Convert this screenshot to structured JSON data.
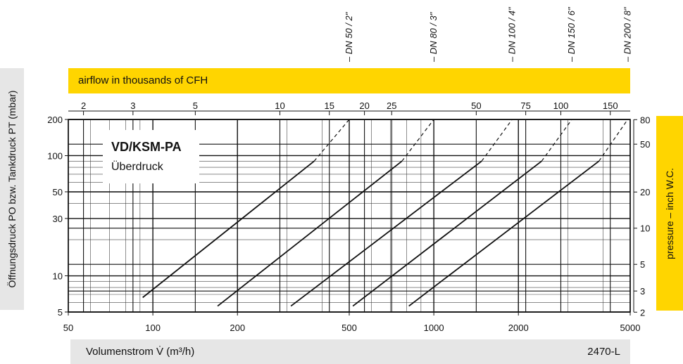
{
  "top_band": {
    "label": "airflow in thousands of CFH"
  },
  "bottom_band": {
    "label": "Volumenstrom V̇ (m³/h)",
    "code": "2470-L"
  },
  "left_axis_label": "Öffnungsdruck PO bzw. Tankdruck PT (mbar)",
  "right_axis_label": "pressure – inch W.C.",
  "legend": {
    "title": "VD/KSM-PA",
    "subtitle": "Überdruck"
  },
  "colors": {
    "accent_yellow": "#ffd500",
    "band_gray": "#e6e6e6",
    "line": "#111111"
  },
  "chart_data": {
    "type": "line",
    "x_scale": "log",
    "y_scale": "log",
    "xlim": [
      50,
      5000
    ],
    "ylim": [
      5,
      200
    ],
    "x_ticks": [
      50,
      100,
      200,
      500,
      1000,
      2000,
      5000
    ],
    "y_ticks": [
      5,
      10,
      30,
      50,
      100,
      200
    ],
    "top_ticks": [
      2,
      3,
      5,
      10,
      15,
      20,
      25,
      50,
      75,
      100,
      150
    ],
    "right_ticks": [
      2,
      3,
      5,
      10,
      20,
      50,
      80
    ],
    "grid": true,
    "series": [
      {
        "name": "DN 50 / 2\"",
        "points": [
          [
            92,
            6.6
          ],
          [
            375,
            90
          ],
          [
            500,
            200
          ]
        ]
      },
      {
        "name": "DN 80 / 3\"",
        "points": [
          [
            170,
            5.6
          ],
          [
            770,
            90
          ],
          [
            1000,
            200
          ]
        ]
      },
      {
        "name": "DN 100 / 4\"",
        "points": [
          [
            310,
            5.6
          ],
          [
            1480,
            90
          ],
          [
            1900,
            200
          ]
        ]
      },
      {
        "name": "DN 150 / 6\"",
        "points": [
          [
            515,
            5.6
          ],
          [
            2420,
            90
          ],
          [
            3100,
            200
          ]
        ]
      },
      {
        "name": "DN 200 / 8\"",
        "points": [
          [
            815,
            5.6
          ],
          [
            3870,
            90
          ],
          [
            4900,
            200
          ]
        ]
      }
    ]
  }
}
